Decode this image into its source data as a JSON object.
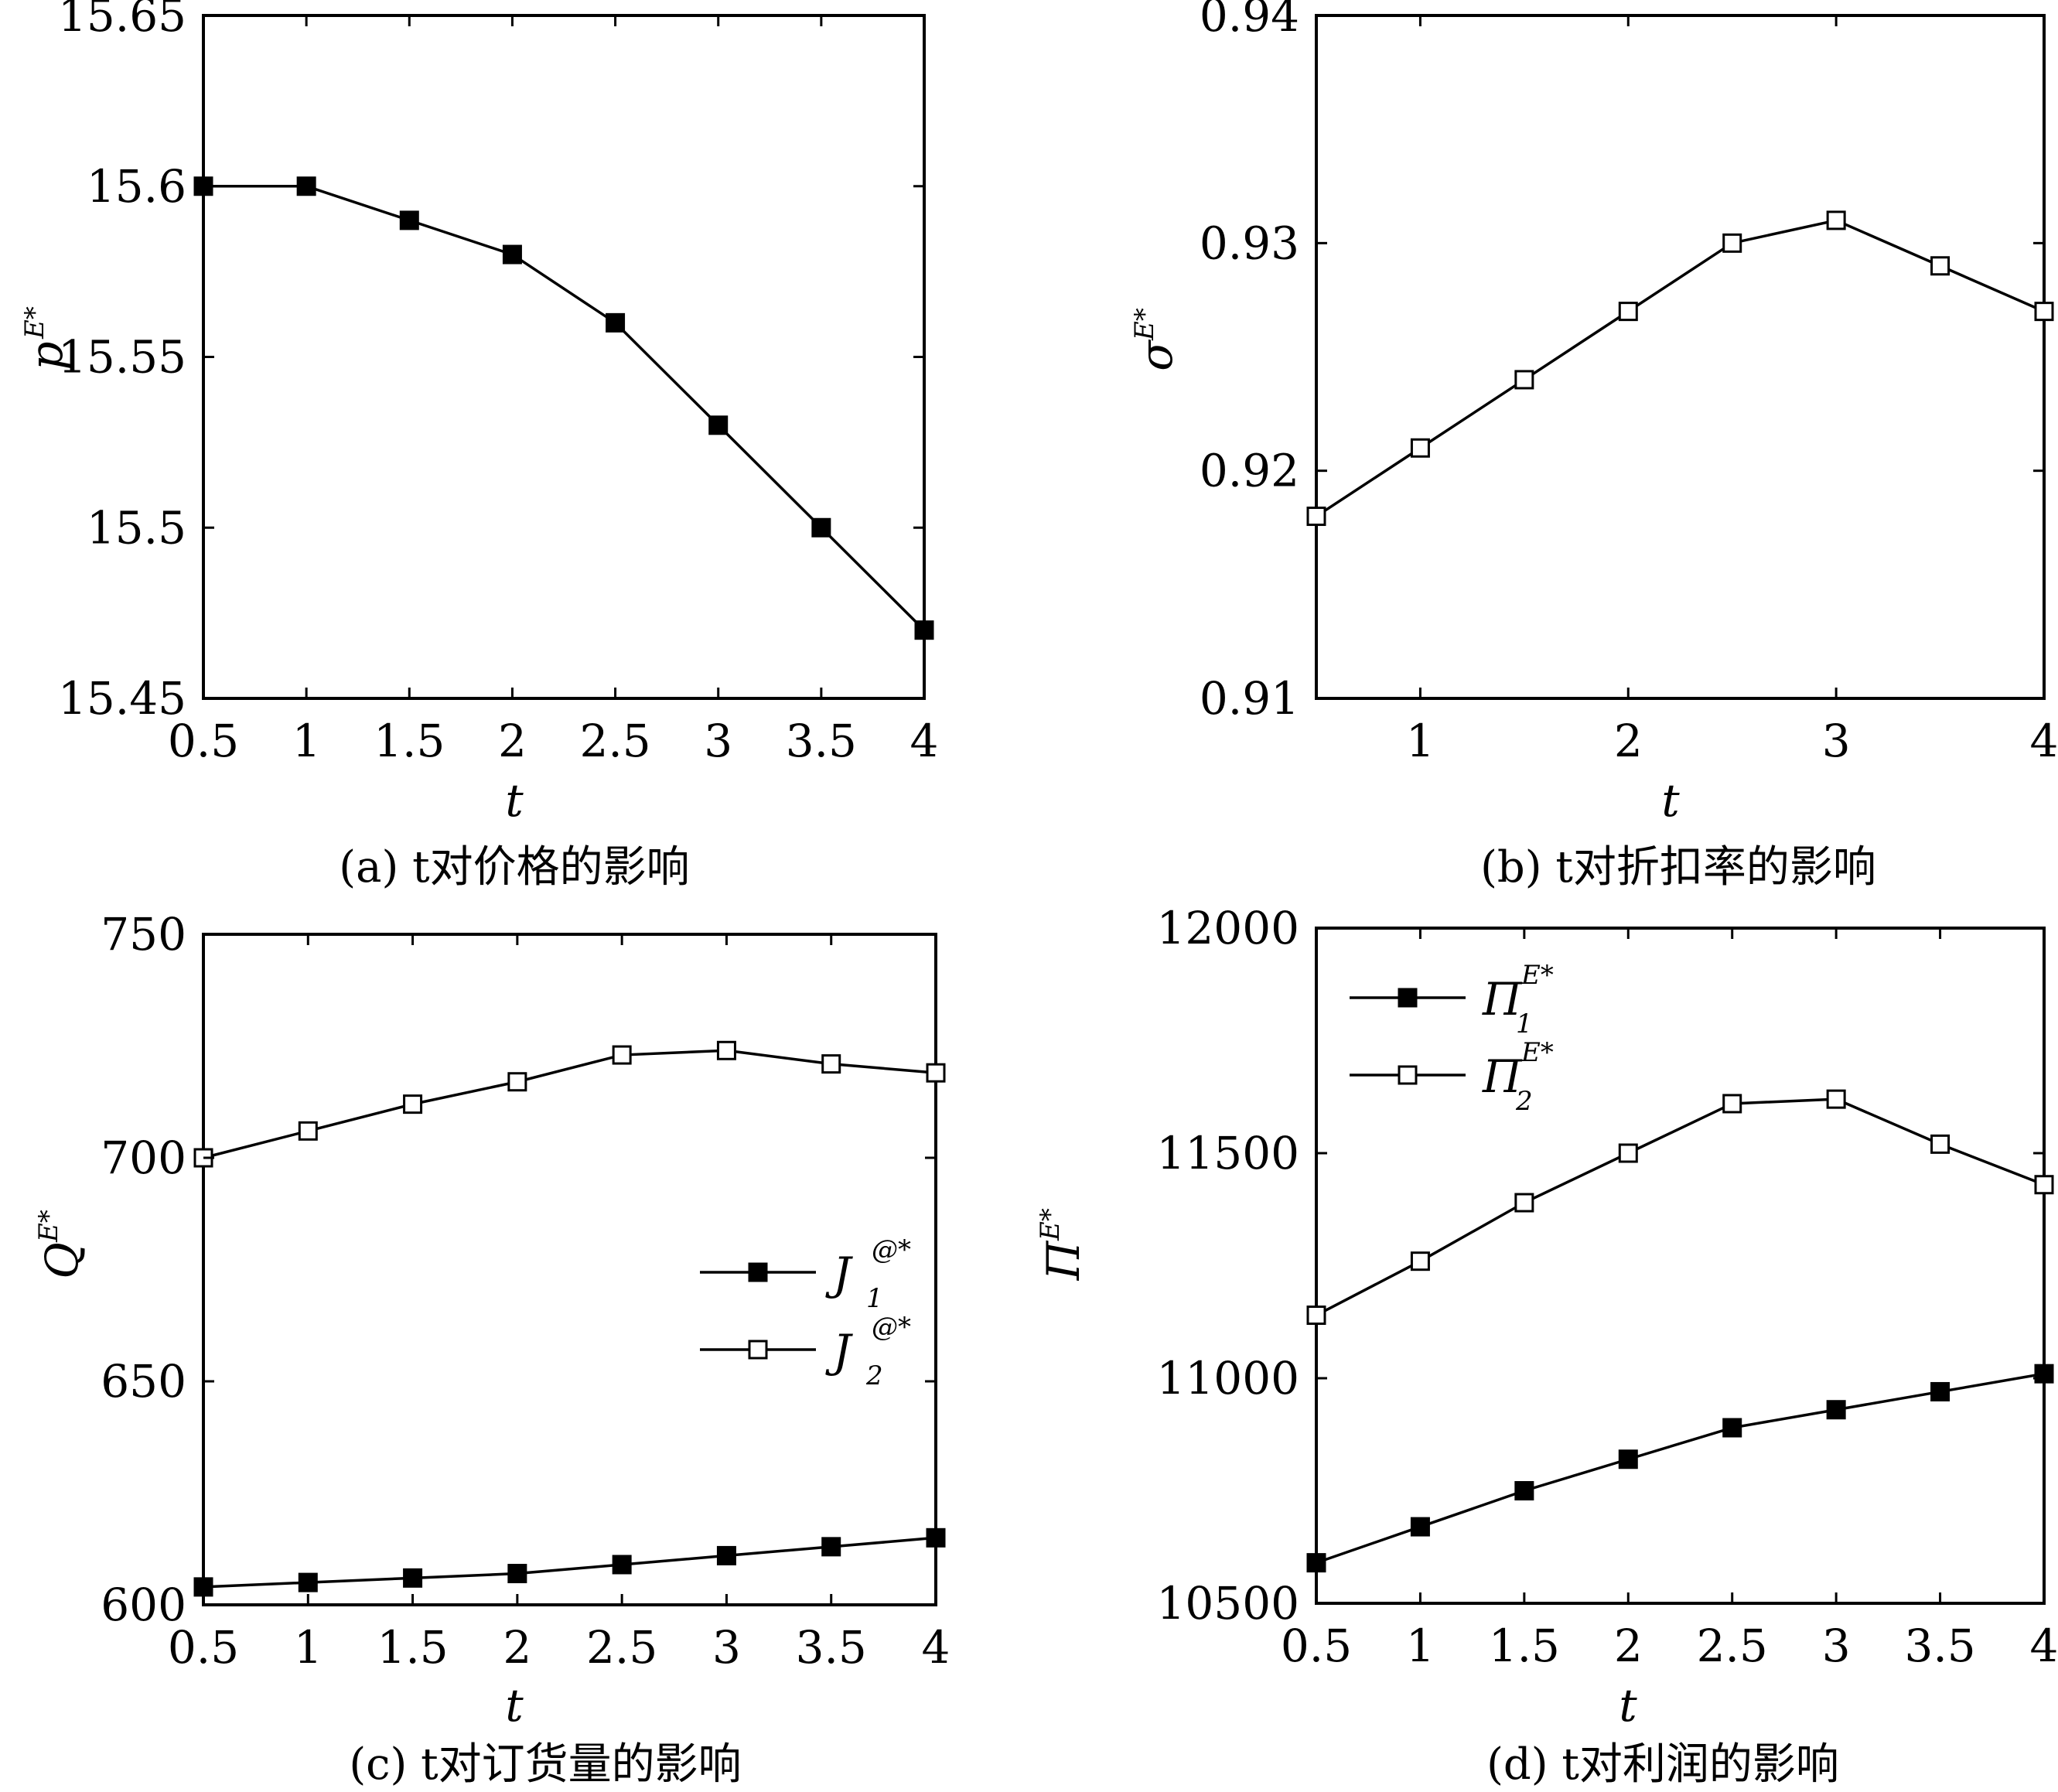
{
  "chart_data": [
    {
      "id": "a",
      "type": "line",
      "caption": "(a) t对价格的影响",
      "xlabel": "t",
      "ylabel": {
        "base": "p",
        "sup": "E*"
      },
      "xlim": [
        0.5,
        4
      ],
      "ylim": [
        15.45,
        15.65
      ],
      "xticks": [
        "0.5",
        "1",
        "1.5",
        "2",
        "2.5",
        "3",
        "3.5",
        "4"
      ],
      "yticks": [
        "15.45",
        "15.5",
        "15.55",
        "15.6",
        "15.65"
      ],
      "x": [
        0.5,
        1,
        1.5,
        2,
        2.5,
        3,
        3.5,
        4
      ],
      "series": [
        {
          "marker": "filled",
          "values": [
            15.6,
            15.6,
            15.59,
            15.58,
            15.56,
            15.53,
            15.5,
            15.47
          ]
        }
      ]
    },
    {
      "id": "b",
      "type": "line",
      "caption": "(b) t对折扣率的影响",
      "xlabel": "t",
      "ylabel": {
        "base": "σ",
        "sup": "E*"
      },
      "xlim": [
        0.5,
        4
      ],
      "ylim": [
        0.91,
        0.94
      ],
      "xticks": [
        "1",
        "2",
        "3",
        "4"
      ],
      "yticks": [
        "0.91",
        "0.92",
        "0.93",
        "0.94"
      ],
      "x": [
        0.5,
        1,
        1.5,
        2,
        2.5,
        3,
        3.5,
        4
      ],
      "series": [
        {
          "marker": "open",
          "values": [
            0.918,
            0.921,
            0.924,
            0.927,
            0.93,
            0.931,
            0.929,
            0.927
          ]
        }
      ]
    },
    {
      "id": "c",
      "type": "line",
      "caption": "(c) t对订货量的影响",
      "xlabel": "t",
      "ylabel": {
        "base": "Q",
        "sup": "E*"
      },
      "xlim": [
        0.5,
        4
      ],
      "ylim": [
        600,
        750
      ],
      "xticks": [
        "0.5",
        "1",
        "1.5",
        "2",
        "2.5",
        "3",
        "3.5",
        "4"
      ],
      "yticks": [
        "600",
        "650",
        "700",
        "750"
      ],
      "x": [
        0.5,
        1,
        1.5,
        2,
        2.5,
        3,
        3.5,
        4
      ],
      "legend_position": "center-right",
      "series": [
        {
          "name": "J",
          "name_sub": "1",
          "name_sup": "@*",
          "marker": "filled",
          "values": [
            604,
            605,
            606,
            607,
            609,
            611,
            613,
            615
          ]
        },
        {
          "name": "J",
          "name_sub": "2",
          "name_sup": "@*",
          "marker": "open",
          "values": [
            700,
            706,
            712,
            717,
            723,
            724,
            721,
            719
          ]
        }
      ]
    },
    {
      "id": "d",
      "type": "line",
      "caption": "(d) t对利润的影响",
      "xlabel": "t",
      "ylabel": {
        "base": "Π",
        "sup": "E*"
      },
      "xlim": [
        0.5,
        4
      ],
      "ylim": [
        10500,
        12000
      ],
      "xticks": [
        "0.5",
        "1",
        "1.5",
        "2",
        "2.5",
        "3",
        "3.5",
        "4"
      ],
      "yticks": [
        "10500",
        "11000",
        "11500",
        "12000"
      ],
      "x": [
        0.5,
        1,
        1.5,
        2,
        2.5,
        3,
        3.5,
        4
      ],
      "legend_position": "top-left",
      "series": [
        {
          "name": "Π",
          "name_sub": "1",
          "name_sup": "E*",
          "marker": "filled",
          "values": [
            10590,
            10670,
            10750,
            10820,
            10890,
            10930,
            10970,
            11010
          ]
        },
        {
          "name": "Π",
          "name_sub": "2",
          "name_sup": "E*",
          "marker": "open",
          "values": [
            11140,
            11260,
            11390,
            11500,
            11610,
            11620,
            11520,
            11430
          ]
        }
      ]
    }
  ]
}
